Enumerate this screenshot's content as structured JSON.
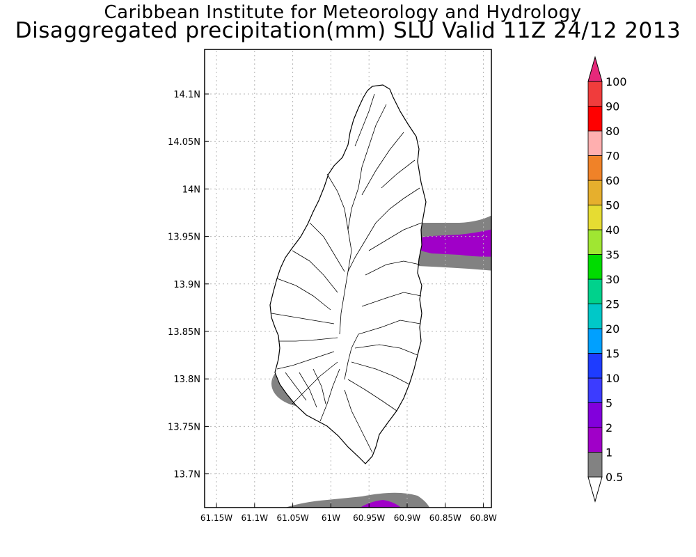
{
  "title": {
    "line1": "Caribbean Institute for Meteorology and Hydrology",
    "line2": "Disaggregated precipitation(mm) SLU Valid 11Z 24/12 2013"
  },
  "map": {
    "lat_ticks": [
      "14.1N",
      "14.05N",
      "14N",
      "13.95N",
      "13.9N",
      "13.85N",
      "13.8N",
      "13.75N",
      "13.7N"
    ],
    "lon_ticks": [
      "61.15W",
      "61.1W",
      "61.05W",
      "61W",
      "60.95W",
      "60.9W",
      "60.85W",
      "60.8W"
    ]
  },
  "colorbar": {
    "labels": [
      "0.5",
      "1",
      "2",
      "5",
      "10",
      "15",
      "20",
      "25",
      "30",
      "35",
      "40",
      "50",
      "60",
      "70",
      "80",
      "90",
      "100"
    ],
    "colors": [
      "#828282",
      "#a000c8",
      "#8200dc",
      "#3c3cff",
      "#1e3cff",
      "#00a0ff",
      "#00c8c8",
      "#00d28c",
      "#00dc00",
      "#a0e632",
      "#e6dc32",
      "#e6af2d",
      "#f08228",
      "#ffafaf",
      "#ff0000",
      "#f03c3c",
      "#e6287a"
    ],
    "under_color": "#ffffff",
    "over_color": "#e6287a"
  }
}
